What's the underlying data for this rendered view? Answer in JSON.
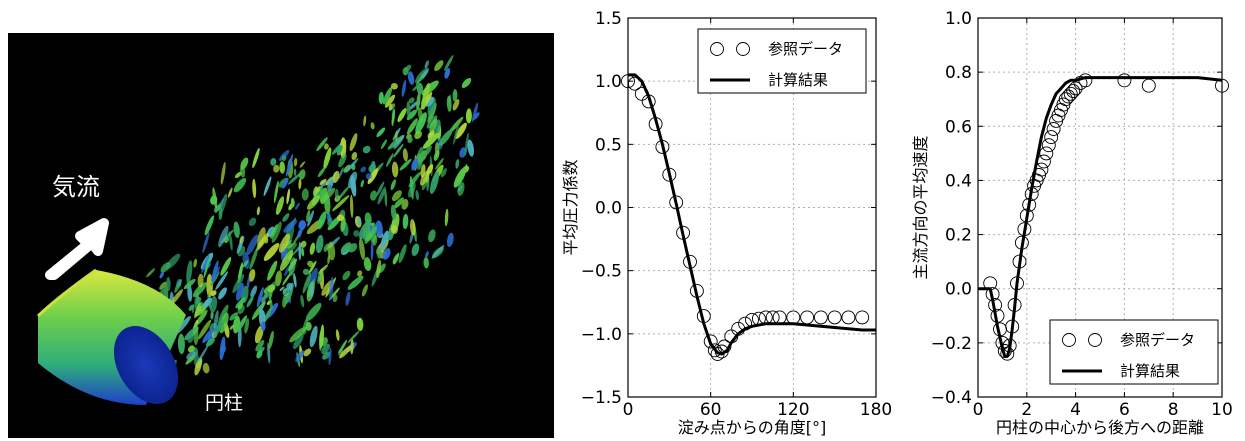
{
  "simulation": {
    "airflow_label": "気流",
    "cylinder_label": "円柱",
    "colors": {
      "background": "#000000",
      "vortex_green": "#3fbf55",
      "vortex_blue": "#2a6fd6",
      "vortex_yellow": "#b8d63a",
      "arrow": "#ffffff"
    }
  },
  "chart_data": [
    {
      "type": "line",
      "title": "",
      "xlabel": "淀み点からの角度[°]",
      "ylabel": "平均圧力係数",
      "xlim": [
        0,
        180
      ],
      "ylim": [
        -1.5,
        1.5
      ],
      "xticks": [
        "0",
        "60",
        "120",
        "180"
      ],
      "yticks": [
        "1.5",
        "1.0",
        "0.5",
        "0.0",
        "−0.5",
        "−1.0",
        "−1.5"
      ],
      "grid": true,
      "legend_position": "top-right",
      "series": [
        {
          "name": "参照データ",
          "style": "open-circles",
          "color": "#000000",
          "x": [
            0,
            5,
            10,
            15,
            20,
            25,
            30,
            35,
            40,
            45,
            50,
            55,
            60,
            63,
            65,
            68,
            70,
            75,
            80,
            85,
            90,
            95,
            100,
            105,
            110,
            120,
            130,
            140,
            150,
            160,
            170
          ],
          "y": [
            1.0,
            0.98,
            0.9,
            0.84,
            0.66,
            0.48,
            0.26,
            0.04,
            -0.2,
            -0.43,
            -0.66,
            -0.86,
            -1.06,
            -1.13,
            -1.16,
            -1.14,
            -1.1,
            -1.02,
            -0.96,
            -0.92,
            -0.89,
            -0.88,
            -0.87,
            -0.87,
            -0.87,
            -0.87,
            -0.87,
            -0.87,
            -0.87,
            -0.87,
            -0.87
          ]
        },
        {
          "name": "計算結果",
          "style": "line",
          "color": "#000000",
          "x": [
            0,
            5,
            10,
            15,
            20,
            25,
            30,
            35,
            40,
            45,
            50,
            55,
            60,
            65,
            68,
            72,
            75,
            80,
            85,
            90,
            100,
            110,
            120,
            130,
            140,
            150,
            160,
            170,
            180
          ],
          "y": [
            1.05,
            1.05,
            1.0,
            0.88,
            0.7,
            0.5,
            0.27,
            0.03,
            -0.22,
            -0.46,
            -0.7,
            -0.92,
            -1.08,
            -1.15,
            -1.16,
            -1.13,
            -1.07,
            -1.0,
            -0.96,
            -0.94,
            -0.92,
            -0.92,
            -0.92,
            -0.93,
            -0.94,
            -0.95,
            -0.96,
            -0.97,
            -0.97
          ]
        }
      ]
    },
    {
      "type": "line",
      "title": "",
      "xlabel": "円柱の中心から後方への距離",
      "ylabel": "主流方向の平均速度",
      "xlim": [
        0,
        10
      ],
      "ylim": [
        -0.4,
        1.0
      ],
      "xticks": [
        "0",
        "2",
        "4",
        "6",
        "8",
        "10"
      ],
      "yticks": [
        "1.0",
        "0.8",
        "0.6",
        "0.4",
        "0.2",
        "0.0",
        "−0.2",
        "−0.4"
      ],
      "grid": true,
      "legend_position": "bottom-right",
      "series": [
        {
          "name": "参照データ",
          "style": "open-circles",
          "color": "#000000",
          "x": [
            0.5,
            0.6,
            0.7,
            0.8,
            0.9,
            1.0,
            1.1,
            1.2,
            1.3,
            1.4,
            1.5,
            1.6,
            1.7,
            1.8,
            1.9,
            2.0,
            2.1,
            2.2,
            2.3,
            2.4,
            2.5,
            2.6,
            2.7,
            2.8,
            2.9,
            3.0,
            3.1,
            3.2,
            3.3,
            3.4,
            3.5,
            3.6,
            3.7,
            3.8,
            3.9,
            4.0,
            4.2,
            4.4,
            6.0,
            7.0,
            10.0
          ],
          "y": [
            0.02,
            -0.02,
            -0.06,
            -0.1,
            -0.15,
            -0.2,
            -0.23,
            -0.24,
            -0.21,
            -0.14,
            -0.06,
            0.02,
            0.1,
            0.17,
            0.22,
            0.27,
            0.31,
            0.35,
            0.38,
            0.4,
            0.42,
            0.44,
            0.47,
            0.5,
            0.53,
            0.56,
            0.59,
            0.62,
            0.64,
            0.66,
            0.68,
            0.7,
            0.71,
            0.72,
            0.73,
            0.74,
            0.76,
            0.77,
            0.77,
            0.75,
            0.75
          ]
        },
        {
          "name": "計算結果",
          "style": "line",
          "color": "#000000",
          "x": [
            0,
            0.5,
            0.6,
            0.8,
            1.0,
            1.1,
            1.2,
            1.3,
            1.4,
            1.5,
            1.6,
            1.8,
            2.0,
            2.2,
            2.4,
            2.6,
            2.8,
            3.0,
            3.2,
            3.4,
            3.6,
            3.8,
            4.0,
            4.4,
            5.0,
            6.0,
            7.0,
            8.0,
            9.0,
            10.0
          ],
          "y": [
            0.0,
            0.0,
            -0.04,
            -0.14,
            -0.22,
            -0.25,
            -0.25,
            -0.22,
            -0.15,
            -0.07,
            0.02,
            0.15,
            0.26,
            0.37,
            0.47,
            0.56,
            0.63,
            0.68,
            0.72,
            0.74,
            0.76,
            0.77,
            0.77,
            0.78,
            0.78,
            0.78,
            0.78,
            0.78,
            0.78,
            0.77
          ]
        }
      ]
    }
  ]
}
